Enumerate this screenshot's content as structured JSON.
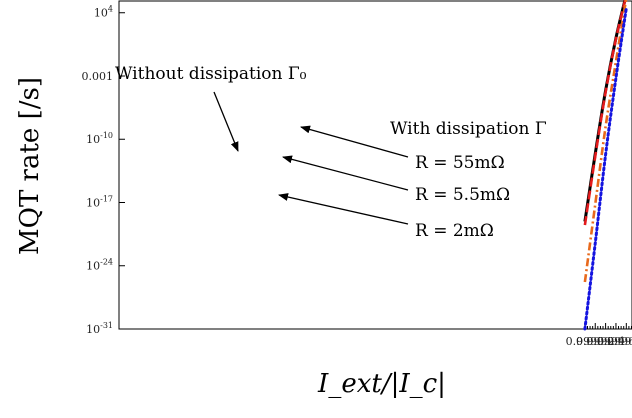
{
  "chart_data": {
    "type": "line",
    "title": "",
    "xlabel": "I_ext/|I_c|",
    "ylabel": "MQT rate [/s]",
    "xlim": [
      0.99,
      0.99991
    ],
    "ylim_log10": [
      -31,
      5.3
    ],
    "yscale": "log",
    "grid": false,
    "x_ticks": [
      "0.9990",
      "0.9992",
      "0.9994",
      "0.9996",
      "0.9998"
    ],
    "y_ticks": [
      {
        "exp": 4,
        "label": "10^4"
      },
      {
        "exp": -3,
        "label": "0.001"
      },
      {
        "exp": -10,
        "label": "10^-10"
      },
      {
        "exp": -17,
        "label": "10^-17"
      },
      {
        "exp": -24,
        "label": "10^-24"
      },
      {
        "exp": -31,
        "label": "10^-31"
      }
    ],
    "series": [
      {
        "style": "solid",
        "color": "#000000",
        "x": [
          0.999,
          0.9992,
          0.9994,
          0.9996,
          0.9998
        ],
        "log10_y": [
          -19.1,
          -11.6,
          -4.6,
          1.2,
          6.0
        ]
      },
      {
        "style": "dashed",
        "color": "#e31a1c",
        "x": [
          0.999,
          0.9992,
          0.9994,
          0.9996,
          0.9998
        ],
        "log10_y": [
          -19.5,
          -11.9,
          -4.8,
          1.1,
          5.9
        ]
      },
      {
        "style": "dashdot",
        "color": "#e8691c",
        "x": [
          0.999,
          0.9992,
          0.9994,
          0.9996,
          0.9998
        ],
        "log10_y": [
          -25.8,
          -17.2,
          -8.6,
          -1.4,
          5.6
        ]
      },
      {
        "style": "dotted",
        "color": "#1414e0",
        "x": [
          0.999,
          0.9992,
          0.9994,
          0.9996,
          0.9998
        ],
        "log10_y": [
          -31.0,
          -21.5,
          -11.7,
          -3.2,
          4.5
        ]
      }
    ],
    "annotations": {
      "without": "Without dissipation Γ₀",
      "with": "With dissipation Γ",
      "r55": "R = 55mΩ",
      "r5_5": "R = 5.5mΩ",
      "r2": "R = 2mΩ"
    }
  }
}
